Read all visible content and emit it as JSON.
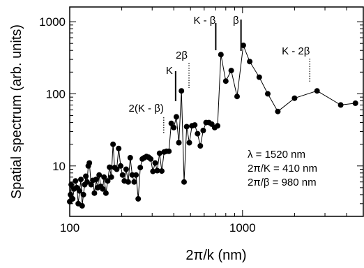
{
  "chart_data": {
    "type": "line",
    "xlabel": "2π/k (nm)",
    "ylabel": "Spatial spectrum (arb. units)",
    "xscale": "log",
    "yscale": "log",
    "xlim": [
      100,
      5000
    ],
    "ylim": [
      2,
      1600
    ],
    "x_ticks": [
      100,
      1000
    ],
    "x_tick_labels": [
      "100",
      "1000"
    ],
    "y_ticks": [
      10,
      100,
      1000
    ],
    "y_tick_labels": [
      "10",
      "100",
      "1000"
    ],
    "series": [
      {
        "x": [
          100,
          101,
          102,
          104,
          106,
          108,
          110,
          112,
          114,
          116,
          118,
          120,
          122,
          124,
          126,
          128,
          130,
          133,
          136,
          139,
          142,
          145,
          148,
          151,
          155,
          158,
          162,
          166,
          170,
          174,
          178,
          182,
          187,
          192,
          197,
          202,
          207,
          212,
          218,
          224,
          230,
          236,
          242,
          249,
          256,
          263,
          270,
          278,
          286,
          294,
          303,
          312,
          321,
          331,
          341,
          352,
          363,
          375,
          387,
          400,
          414,
          428,
          443,
          459,
          475,
          492,
          510,
          529,
          549,
          570,
          592,
          615,
          639,
          664,
          690,
          717,
          750,
          800,
          860,
          930,
          1010,
          1100,
          1250,
          1400,
          1600,
          2000,
          2700,
          3700,
          4500
        ],
        "y": [
          3.2,
          4,
          5.5,
          3.5,
          4.8,
          6.2,
          5,
          3,
          4.5,
          6.5,
          2.8,
          4,
          5.5,
          7.2,
          6,
          10,
          11,
          5.5,
          6.3,
          4.2,
          6.5,
          5,
          7.5,
          5.2,
          4.8,
          7,
          4.2,
          6.2,
          9.6,
          7,
          20,
          9.5,
          9,
          17.5,
          10,
          7.5,
          6.2,
          9,
          6,
          13,
          7.5,
          6,
          7.5,
          3.5,
          9.5,
          12.5,
          13,
          13.5,
          13.2,
          12.5,
          8.4,
          11,
          8.6,
          15,
          8.5,
          15.6,
          16,
          16,
          39,
          34,
          48,
          21,
          110,
          6,
          35,
          21,
          36,
          37,
          28,
          19,
          31,
          40,
          40,
          38,
          34,
          36,
          350,
          150,
          210,
          92,
          470,
          280,
          170,
          100,
          57,
          87,
          110,
          70,
          74
        ]
      }
    ],
    "annotations": [
      {
        "label": "2(K - β)",
        "x": 350
      },
      {
        "label": "K",
        "x": 410
      },
      {
        "label": "2β",
        "x": 490
      },
      {
        "label": "K - β",
        "x": 700
      },
      {
        "label": "β",
        "x": 980
      },
      {
        "label": "K - 2β",
        "x": 2450
      }
    ],
    "info_lines": [
      "λ = 1520 nm",
      "2π/K = 410 nm",
      "2π/β = 980 nm"
    ]
  }
}
